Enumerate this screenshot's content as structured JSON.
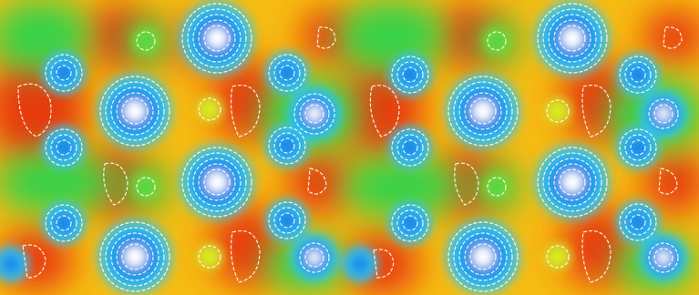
{
  "image": {
    "kind": "filled-contour-map",
    "palette": [
      "#0b6fe0",
      "#2aa4ee",
      "#35c8e8",
      "#3fd8a0",
      "#35d24a",
      "#9be02c",
      "#e9ec1e",
      "#f6bc12",
      "#f27d12",
      "#e83a10"
    ],
    "contour_line_color": "#ffffff",
    "background": "#ffffff"
  }
}
